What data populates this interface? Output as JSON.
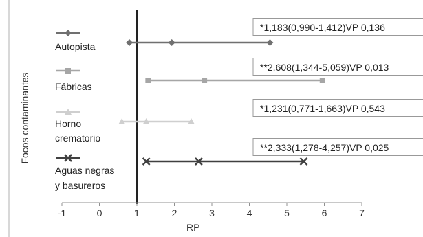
{
  "chart_data": {
    "type": "forest",
    "title": "",
    "xlabel": "RP",
    "ylabel": "Focos contaminantes",
    "xlim": [
      -1,
      7
    ],
    "xticks": [
      "-1",
      "0",
      "1",
      "2",
      "3",
      "4",
      "5",
      "6",
      "7"
    ],
    "reference_line_x": 1,
    "grid": false,
    "series": [
      {
        "name": "Autopista",
        "label_lines": [
          "Autopista"
        ],
        "marker": "diamond",
        "color": "#707070",
        "estimate": 1.183,
        "ci_low": 0.99,
        "ci_high": 1.412,
        "plotted_points": [
          0.8,
          1.93,
          4.55
        ],
        "annotation": "*1,183(0,990-1,412)VP 0,136"
      },
      {
        "name": "Fábricas",
        "label_lines": [
          "Fábricas"
        ],
        "marker": "square",
        "color": "#a6a6a6",
        "estimate": 2.608,
        "ci_low": 1.344,
        "ci_high": 5.059,
        "plotted_points": [
          1.3,
          2.8,
          5.95
        ],
        "annotation": "**2,608(1,344-5,059)VP 0,013"
      },
      {
        "name": "Horno crematorio",
        "label_lines": [
          "Horno",
          "crematorio"
        ],
        "marker": "triangle",
        "color": "#cfcfcf",
        "estimate": 1.231,
        "ci_low": 0.771,
        "ci_high": 1.663,
        "plotted_points": [
          0.6,
          1.25,
          2.45
        ],
        "annotation": "*1,231(0,771-1,663)VP 0,543"
      },
      {
        "name": "Aguas negras y basureros",
        "label_lines": [
          "Aguas negras",
          "y basureros"
        ],
        "marker": "x",
        "color": "#404040",
        "estimate": 2.333,
        "ci_low": 1.278,
        "ci_high": 4.257,
        "plotted_points": [
          1.25,
          2.65,
          5.45
        ],
        "annotation": "**2,333(1,278-4,257)VP 0,025"
      }
    ]
  }
}
